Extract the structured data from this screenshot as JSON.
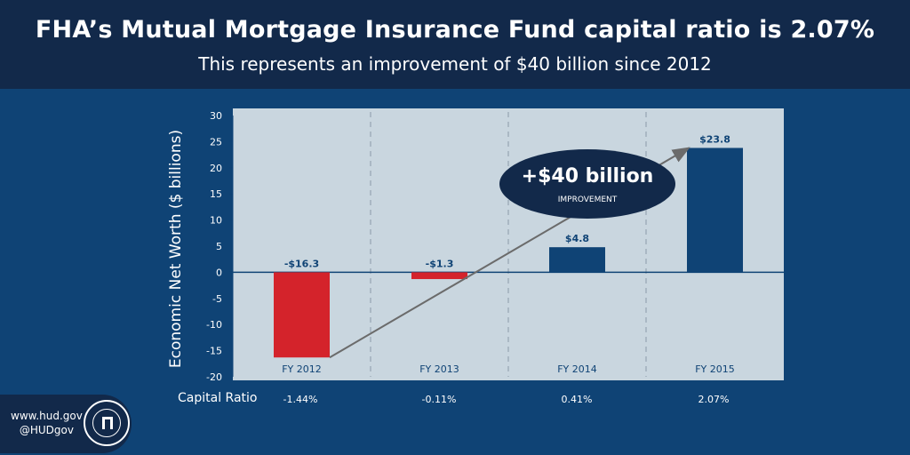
{
  "header": {
    "title": "FHA’s Mutual Mortgage Insurance Fund capital ratio is 2.07%",
    "subtitle": "This represents an improvement of $40 billion since 2012"
  },
  "chart_data": {
    "type": "bar",
    "categories": [
      "FY 2012",
      "FY 2013",
      "FY 2014",
      "FY 2015"
    ],
    "values": [
      -16.3,
      -1.3,
      4.8,
      23.8
    ],
    "data_labels": [
      "-$16.3",
      "-$1.3",
      "$4.8",
      "$23.8"
    ],
    "ylabel": "Economic Net Worth ($ billions)",
    "ylim": [
      -20,
      30
    ],
    "yticks": [
      "30",
      "25",
      "20",
      "15",
      "10",
      "5",
      "0",
      "-5",
      "-10",
      "-15",
      "-20"
    ],
    "colors": {
      "negative": "#d4232b",
      "positive": "#0f4375",
      "plot_bg": "#c9d6df",
      "axis_text": "#0f4375"
    },
    "grid": false
  },
  "callout": {
    "amount": "+$40 billion",
    "label": "IMPROVEMENT"
  },
  "capital_ratio": {
    "label": "Capital Ratio",
    "values": [
      "-1.44%",
      "-0.11%",
      "0.41%",
      "2.07%"
    ]
  },
  "footer": {
    "website": "www.hud.gov",
    "handle": "@HUDgov",
    "seal_icon": "hud-seal-icon"
  }
}
